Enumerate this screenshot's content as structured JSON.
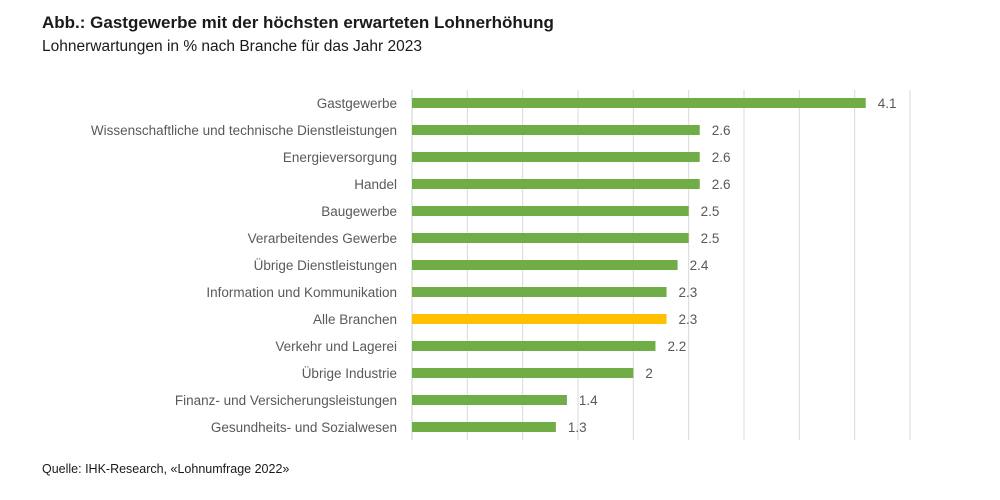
{
  "title": "Abb.: Gastgewerbe mit der höchsten erwarteten Lohnerhöhung",
  "subtitle": "Lohnerwartungen in % nach Branche für das Jahr 2023",
  "source": "Quelle: IHK-Research, «Lohnumfrage 2022»",
  "colors": {
    "bar": "#70ad47",
    "highlight": "#ffc000",
    "grid": "#d9d9d9",
    "label": "#595959"
  },
  "chart_data": {
    "type": "bar",
    "orientation": "horizontal",
    "categories": [
      "Gastgewerbe",
      "Wissenschaftliche und technische Dienstleistungen",
      "Energieversorgung",
      "Handel",
      "Baugewerbe",
      "Verarbeitendes Gewerbe",
      "Übrige Dienstleistungen",
      "Information und Kommunikation",
      "Alle Branchen",
      "Verkehr und Lagerei",
      "Übrige Industrie",
      "Finanz- und Versicherungsleistungen",
      "Gesundheits- und Sozialwesen"
    ],
    "values": [
      4.1,
      2.6,
      2.6,
      2.6,
      2.5,
      2.5,
      2.4,
      2.3,
      2.3,
      2.2,
      2,
      1.4,
      1.3
    ],
    "value_labels": [
      "4.1",
      "2.6",
      "2.6",
      "2.6",
      "2.5",
      "2.5",
      "2.4",
      "2.3",
      "2.3",
      "2.2",
      "2",
      "1.4",
      "1.3"
    ],
    "highlight_category": "Alle Branchen",
    "xlim": [
      0,
      4.5
    ],
    "grid": true,
    "legend": "none"
  }
}
